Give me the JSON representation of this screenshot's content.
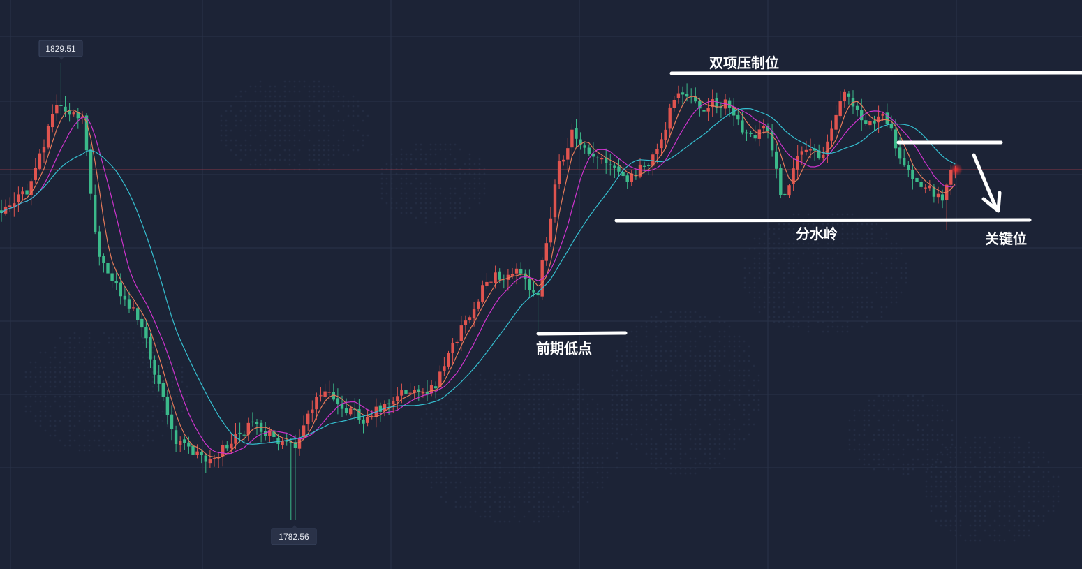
{
  "chart_data": {
    "type": "candlestick",
    "price_markers": {
      "high_label": "1829.51",
      "low_label": "1782.56",
      "high_value": 1829.51,
      "low_value": 1782.56
    },
    "annotations": {
      "double_top": "双项压制位",
      "previous_low": "前期低点",
      "watershed": "分水岭",
      "key_level": "关键位"
    },
    "colors": {
      "background": "#1c2336",
      "grid": "#2a3349",
      "bull": "#e0544f",
      "bear": "#3bb98a",
      "ma_fast": "#e57a5a",
      "ma_mid": "#cc33cc",
      "ma_slow": "#35bfd0",
      "current_price_line": "#b0404f",
      "annotation": "#ffffff",
      "glow": "#ff3030"
    },
    "grid": true,
    "moving_averages": [
      "fast",
      "mid",
      "slow"
    ],
    "price_range": [
      1778,
      1832
    ]
  }
}
